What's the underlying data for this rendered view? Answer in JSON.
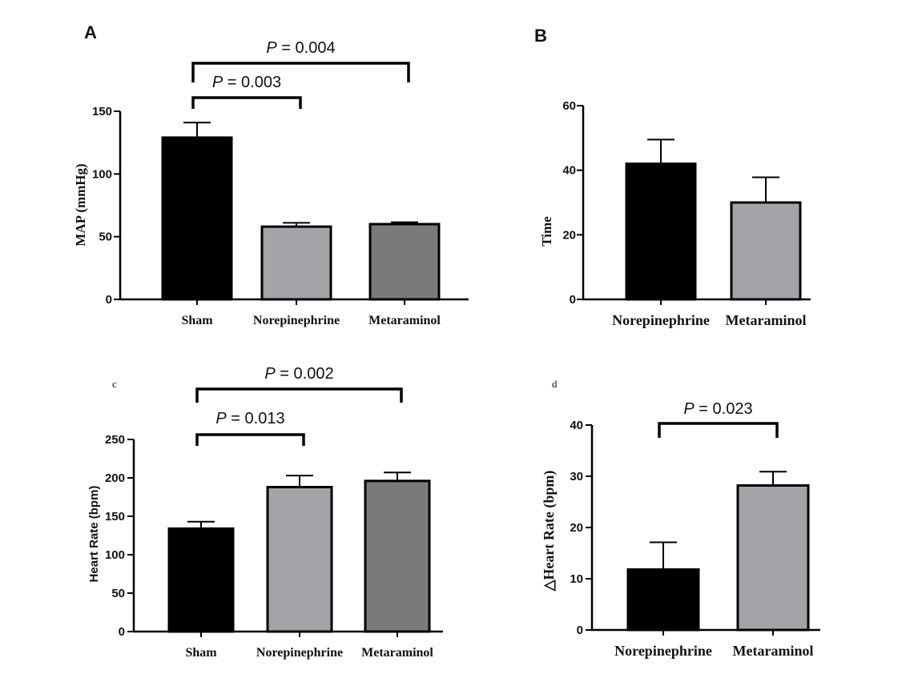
{
  "chart_data": [
    {
      "panel": "A",
      "type": "bar",
      "categories": [
        "Sham",
        "Norepinephrine",
        "Metaraminol"
      ],
      "values": [
        129,
        58,
        60
      ],
      "errors": [
        12,
        3,
        1.5
      ],
      "colors": [
        "#000000",
        "#a3a3a8",
        "#7a7a7a"
      ],
      "ylabel": "MAP (mmHg)",
      "ylim": [
        0,
        150
      ],
      "yticks": [
        0,
        50,
        100,
        150
      ],
      "comparisons": [
        {
          "from": 0,
          "to": 1,
          "label": "= 0.003",
          "p": "P"
        },
        {
          "from": 0,
          "to": 2,
          "label": "= 0.004",
          "p": "P"
        }
      ]
    },
    {
      "panel": "B",
      "type": "bar",
      "categories": [
        "Norepinephrine",
        "Metaraminol"
      ],
      "values": [
        42,
        30
      ],
      "errors": [
        7.5,
        7.8
      ],
      "colors": [
        "#000000",
        "#a3a3a8"
      ],
      "ylabel": "Time",
      "ylim": [
        0,
        60
      ],
      "yticks": [
        0,
        20,
        40,
        60
      ],
      "comparisons": []
    },
    {
      "panel": "c",
      "type": "bar",
      "categories": [
        "Sham",
        "Norepinephrine",
        "Metaraminol"
      ],
      "values": [
        134,
        188,
        196
      ],
      "errors": [
        9,
        15,
        11
      ],
      "colors": [
        "#000000",
        "#a3a3a8",
        "#7a7a7a"
      ],
      "ylabel": "Heart Rate (bpm)",
      "ylim": [
        0,
        250
      ],
      "yticks": [
        0,
        50,
        100,
        150,
        200,
        250
      ],
      "comparisons": [
        {
          "from": 0,
          "to": 1,
          "label": "= 0.013",
          "p": "P"
        },
        {
          "from": 0,
          "to": 2,
          "label": "= 0.002",
          "p": "P"
        }
      ]
    },
    {
      "panel": "d",
      "type": "bar",
      "categories": [
        "Norepinephrine",
        "Metaraminol"
      ],
      "values": [
        11.8,
        28.2
      ],
      "errors": [
        5.3,
        2.7
      ],
      "colors": [
        "#000000",
        "#a3a3a8"
      ],
      "ylabel": "△Heart Rate (bpm)",
      "ylim": [
        0,
        40
      ],
      "yticks": [
        0,
        10,
        20,
        30,
        40
      ],
      "comparisons": [
        {
          "from": 0,
          "to": 1,
          "label": "= 0.023",
          "p": "P"
        }
      ]
    }
  ]
}
